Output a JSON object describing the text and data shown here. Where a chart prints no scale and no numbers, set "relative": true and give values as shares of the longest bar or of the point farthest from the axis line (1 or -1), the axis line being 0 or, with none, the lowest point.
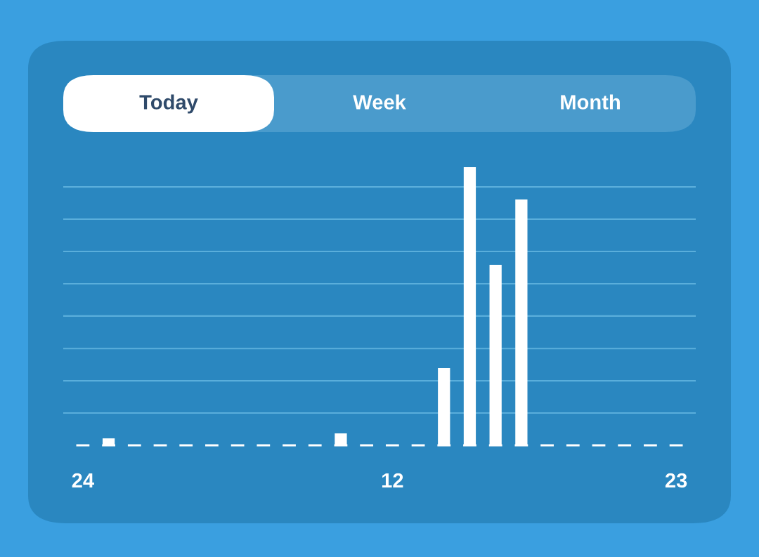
{
  "chart_data": {
    "type": "bar",
    "relative": true,
    "color": "#ffffff",
    "ref_lines": [
      {
        "axis": "y",
        "value": 0.116,
        "color": "#5aaedb"
      },
      {
        "axis": "y",
        "value": 0.232,
        "color": "#5aaedb"
      },
      {
        "axis": "y",
        "value": 0.348,
        "color": "#5aaedb"
      },
      {
        "axis": "y",
        "value": 0.465,
        "color": "#5aaedb"
      },
      {
        "axis": "y",
        "value": 0.581,
        "color": "#5aaedb"
      },
      {
        "axis": "y",
        "value": 0.697,
        "color": "#5aaedb"
      },
      {
        "axis": "y",
        "value": 0.813,
        "color": "#5aaedb"
      },
      {
        "axis": "y",
        "value": 0.929,
        "color": "#5aaedb"
      }
    ],
    "categories": [
      "24",
      null,
      null,
      null,
      null,
      null,
      null,
      null,
      null,
      null,
      null,
      null,
      "12",
      null,
      null,
      null,
      null,
      null,
      null,
      null,
      null,
      null,
      null,
      "23"
    ],
    "values": [
      0,
      0.025,
      0,
      0,
      0,
      0,
      0,
      0,
      0,
      0,
      0.043,
      0,
      0,
      0,
      0.278,
      1,
      0.649,
      0.884,
      0,
      0,
      0,
      0,
      0,
      0
    ],
    "annotations": [
      "Today",
      "Week",
      "Month"
    ]
  }
}
